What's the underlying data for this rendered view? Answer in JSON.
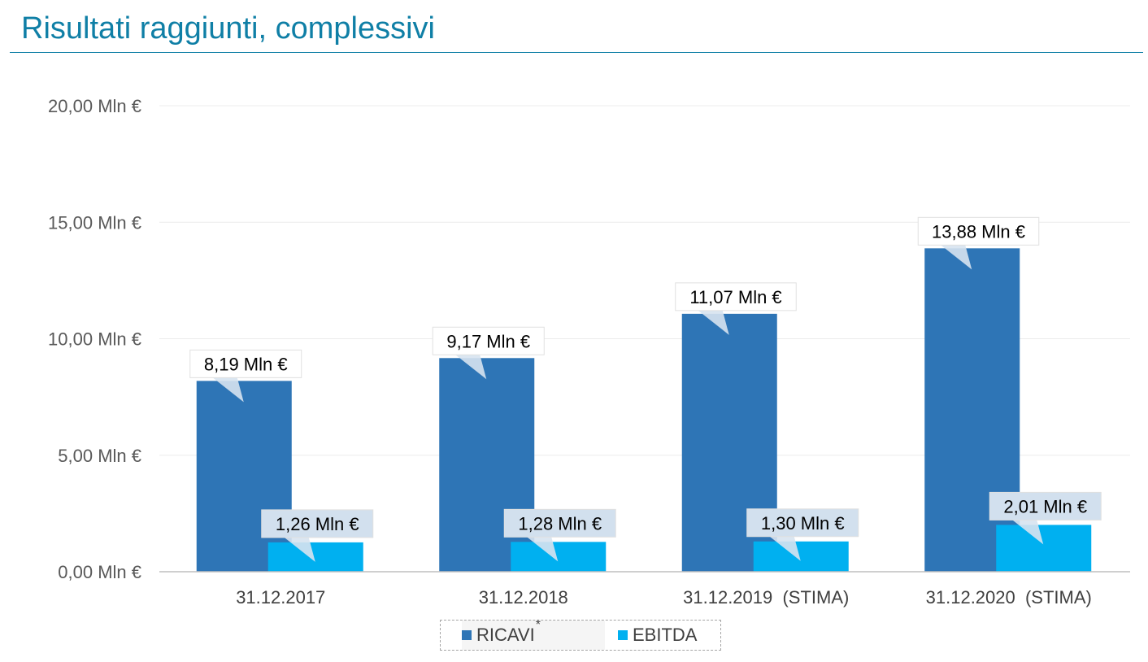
{
  "page": {
    "title": "Risultati raggiunti, complessivi"
  },
  "chart_data": {
    "type": "bar",
    "title": "",
    "xlabel": "",
    "ylabel": "",
    "ylim": [
      0,
      20
    ],
    "y_ticks": [
      0,
      5,
      10,
      15,
      20
    ],
    "y_tick_labels": [
      "0,00 Mln €",
      "5,00 Mln €",
      "10,00 Mln €",
      "15,00 Mln €",
      "20,00 Mln €"
    ],
    "categories": [
      "31.12.2017",
      "31.12.2018",
      "31.12.2019  (STIMA)",
      "31.12.2020  (STIMA)"
    ],
    "series": [
      {
        "name": "RICAVI",
        "color": "#2e75b6",
        "values": [
          8.19,
          9.17,
          11.07,
          13.88
        ],
        "labels": [
          "8,19 Mln €",
          "9,17 Mln €",
          "11,07 Mln €",
          "13,88 Mln €"
        ]
      },
      {
        "name": "EBITDA",
        "color": "#00b0f0",
        "values": [
          1.26,
          1.28,
          1.3,
          2.01
        ],
        "labels": [
          "1,26 Mln €",
          "1,28 Mln €",
          "1,30 Mln €",
          "2,01 Mln €"
        ]
      }
    ],
    "legend": {
      "placement": "bottom",
      "items": [
        "RICAVI",
        "EBITDA"
      ],
      "note_marker": "*"
    },
    "grid": true
  }
}
